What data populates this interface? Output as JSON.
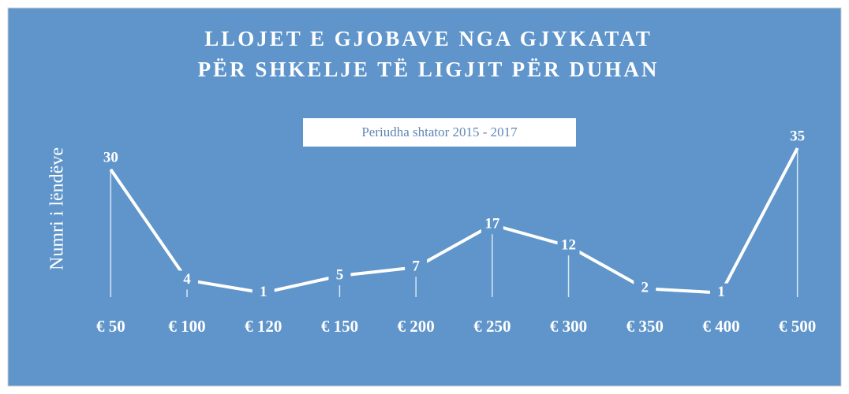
{
  "chart_data": {
    "type": "line",
    "title": [
      "LLOJET E GJOBAVE NGA GJYKATAT",
      "PËR SHKELJE TË LIGJIT PËR DUHAN"
    ],
    "subtitle": "Periudha shtator 2015 - 2017",
    "y_label": "Numri i lëndëve",
    "categories": [
      "€ 50",
      "€ 100",
      "€ 120",
      "€ 150",
      "€ 200",
      "€ 250",
      "€ 300",
      "€ 350",
      "€ 400",
      "€ 500"
    ],
    "values": [
      30,
      4,
      1,
      5,
      7,
      17,
      12,
      2,
      1,
      35
    ],
    "color": "#ffffff",
    "ylim": [
      0,
      35
    ]
  }
}
